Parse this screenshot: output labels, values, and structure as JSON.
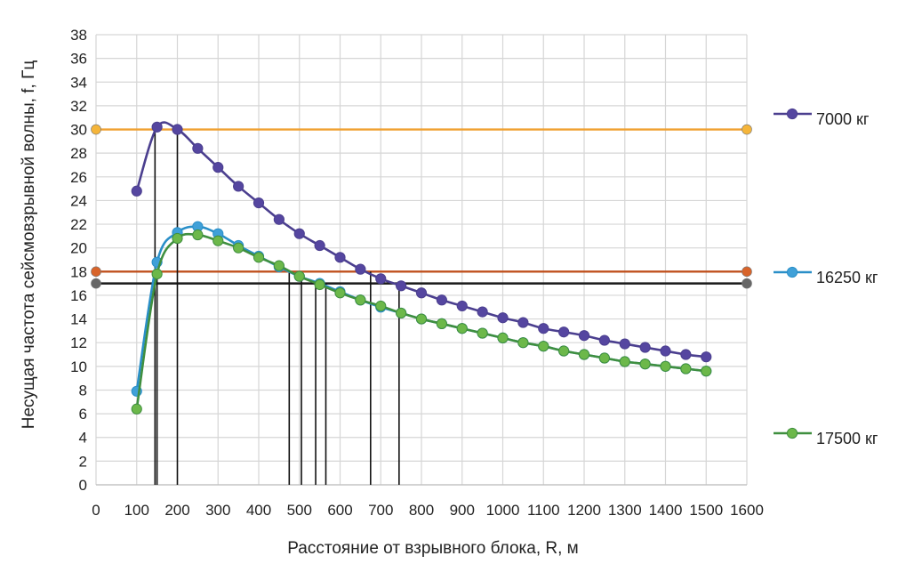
{
  "chart_data": {
    "type": "line",
    "title": "",
    "xlabel": "Расстояние от взрывного блока, R, м",
    "ylabel": "Несущая частота сейсмовзрывной волны, f, Гц",
    "xlim": [
      0,
      1600
    ],
    "ylim": [
      0,
      38
    ],
    "x_ticks": [
      "0",
      "100",
      "200",
      "300",
      "400",
      "500",
      "600",
      "700",
      "800",
      "900",
      "1000",
      "1100",
      "1200",
      "1300",
      "1400",
      "1500",
      "1600"
    ],
    "y_ticks": [
      "0",
      "2",
      "4",
      "6",
      "8",
      "10",
      "12",
      "14",
      "16",
      "18",
      "20",
      "22",
      "24",
      "26",
      "28",
      "30",
      "32",
      "34",
      "36",
      "38"
    ],
    "grid": true,
    "legend_position": "right",
    "series": [
      {
        "name": "7000 кг",
        "color": "#4b3f8f",
        "marker_color": "#5546a0",
        "x": [
          100,
          150,
          200,
          250,
          300,
          350,
          400,
          450,
          500,
          550,
          600,
          650,
          700,
          750,
          800,
          850,
          900,
          950,
          1000,
          1050,
          1100,
          1150,
          1200,
          1250,
          1300,
          1350,
          1400,
          1450,
          1500
        ],
        "values": [
          24.8,
          30.2,
          30.0,
          28.4,
          26.8,
          25.2,
          23.8,
          22.4,
          21.2,
          20.2,
          19.2,
          18.2,
          17.4,
          16.8,
          16.2,
          15.6,
          15.1,
          14.6,
          14.1,
          13.7,
          13.2,
          12.9,
          12.6,
          12.2,
          11.9,
          11.6,
          11.3,
          11.0,
          10.8
        ]
      },
      {
        "name": "16250 кг",
        "color": "#2a8fc8",
        "marker_color": "#3fa0d8",
        "x": [
          100,
          150,
          200,
          250,
          300,
          350,
          400,
          450,
          500,
          550,
          600,
          650,
          700,
          750,
          800,
          850,
          900,
          950,
          1000,
          1050,
          1100,
          1150,
          1200,
          1250,
          1300,
          1350,
          1400,
          1450,
          1500
        ],
        "values": [
          7.9,
          18.8,
          21.3,
          21.8,
          21.2,
          20.2,
          19.3,
          18.4,
          17.6,
          17.0,
          16.3,
          15.6,
          15.0,
          14.5,
          14.0,
          13.6,
          13.2,
          12.8,
          12.4,
          12.0,
          11.7,
          11.3,
          11.0,
          10.7,
          10.4,
          10.2,
          10.0,
          9.8,
          9.6
        ]
      },
      {
        "name": "17500 кг",
        "color": "#3f8f3f",
        "marker_color": "#6cb84a",
        "x": [
          100,
          150,
          200,
          250,
          300,
          350,
          400,
          450,
          500,
          550,
          600,
          650,
          700,
          750,
          800,
          850,
          900,
          950,
          1000,
          1050,
          1100,
          1150,
          1200,
          1250,
          1300,
          1350,
          1400,
          1450,
          1500
        ],
        "values": [
          6.4,
          17.8,
          20.8,
          21.1,
          20.6,
          20.0,
          19.2,
          18.5,
          17.6,
          16.9,
          16.2,
          15.6,
          15.1,
          14.5,
          14.0,
          13.6,
          13.2,
          12.8,
          12.4,
          12.0,
          11.7,
          11.3,
          11.0,
          10.7,
          10.4,
          10.2,
          10.0,
          9.8,
          9.6
        ]
      }
    ],
    "reference_lines": [
      {
        "value": 30,
        "color": "#f0a030",
        "marker_color": "#f5b53a"
      },
      {
        "value": 18,
        "color": "#c0501e",
        "marker_color": "#d8642a"
      },
      {
        "value": 17,
        "color": "#1a1a1a",
        "marker_color": "#666666"
      }
    ],
    "vertical_markers": [
      {
        "x": 145,
        "y": 30
      },
      {
        "x": 150,
        "y": 18
      },
      {
        "x": 200,
        "y": 30
      },
      {
        "x": 475,
        "y": 18
      },
      {
        "x": 505,
        "y": 18
      },
      {
        "x": 540,
        "y": 17
      },
      {
        "x": 565,
        "y": 17
      },
      {
        "x": 675,
        "y": 18
      },
      {
        "x": 745,
        "y": 17
      }
    ]
  }
}
